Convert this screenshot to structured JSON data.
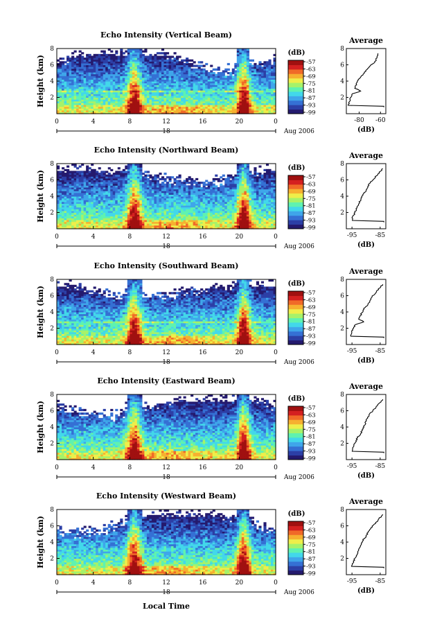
{
  "figure": {
    "ylabel": "Height (km)",
    "xlabel": "Local Time",
    "date_label": "Aug 2006",
    "colorbar_unit": "(dB)",
    "average_title": "Average",
    "average_xlabel": "(dB)"
  },
  "colorscale": {
    "colors": [
      "#241a6e",
      "#2c3fa6",
      "#3570d4",
      "#3fa6ea",
      "#42d8ea",
      "#5ff2b0",
      "#a6f26a",
      "#eeee4a",
      "#f6b030",
      "#f06a28",
      "#d42020",
      "#a01010"
    ],
    "ticks": [
      "-57",
      "-63",
      "-69",
      "-75",
      "-81",
      "-87",
      "-93",
      "-99"
    ]
  },
  "chart_data": [
    {
      "type": "heatmap",
      "title": "Echo Intensity (Vertical Beam)",
      "x_ticks": [
        "0",
        "4",
        "8",
        "12",
        "16",
        "20",
        "0"
      ],
      "x_day_label": "18",
      "y_ticks": [
        "8",
        "6",
        "4",
        "2"
      ],
      "xlim": [
        0,
        24
      ],
      "ylim": [
        0,
        8
      ],
      "average": {
        "x_ticks": [
          "-80",
          "-60"
        ],
        "xlim": [
          -92,
          -55
        ],
        "profile_db": [
          -62,
          -63,
          -64,
          -66,
          -70,
          -73,
          -75,
          -77,
          -80,
          -82,
          -83,
          -85,
          -86,
          -87,
          -88,
          -89,
          -90,
          -90
        ],
        "bump_km": 2.8
      },
      "has_band": true
    },
    {
      "type": "heatmap",
      "title": "Echo Intensity (Northward Beam)",
      "x_ticks": [
        "0",
        "4",
        "8",
        "12",
        "16",
        "20",
        "0"
      ],
      "x_day_label": "18",
      "y_ticks": [
        "8",
        "6",
        "4",
        "2"
      ],
      "xlim": [
        0,
        24
      ],
      "ylim": [
        0,
        8
      ],
      "average": {
        "x_ticks": [
          "-95",
          "-85"
        ],
        "xlim": [
          -97,
          -83
        ],
        "profile_db": [
          -84,
          -85,
          -86,
          -87,
          -88,
          -89,
          -89.5,
          -90,
          -91,
          -91.5,
          -92,
          -92.5,
          -93,
          -93.5,
          -94,
          -94.5,
          -95,
          -95
        ],
        "bump_km": null
      },
      "has_band": false
    },
    {
      "type": "heatmap",
      "title": "Echo Intensity (Southward Beam)",
      "x_ticks": [
        "0",
        "4",
        "8",
        "12",
        "16",
        "20",
        "0"
      ],
      "x_day_label": "18",
      "y_ticks": [
        "8",
        "6",
        "4",
        "2"
      ],
      "xlim": [
        0,
        24
      ],
      "ylim": [
        0,
        8
      ],
      "average": {
        "x_ticks": [
          "-95",
          "-85"
        ],
        "xlim": [
          -97,
          -83
        ],
        "profile_db": [
          -84,
          -85,
          -86,
          -87,
          -88,
          -88.5,
          -89,
          -90,
          -91,
          -91.5,
          -92,
          -93,
          -93.5,
          -94,
          -94.5,
          -95,
          -95.5,
          -95
        ],
        "bump_km": 2.8
      },
      "has_band": true
    },
    {
      "type": "heatmap",
      "title": "Echo Intensity (Eastward Beam)",
      "x_ticks": [
        "0",
        "4",
        "8",
        "12",
        "16",
        "20",
        "0"
      ],
      "x_day_label": "18",
      "y_ticks": [
        "8",
        "6",
        "4",
        "2"
      ],
      "xlim": [
        0,
        24
      ],
      "ylim": [
        0,
        8
      ],
      "average": {
        "x_ticks": [
          "-95",
          "-85"
        ],
        "xlim": [
          -97,
          -83
        ],
        "profile_db": [
          -84,
          -85,
          -86,
          -87,
          -88,
          -89,
          -89.5,
          -90,
          -90.5,
          -91,
          -91.5,
          -92,
          -93,
          -93.5,
          -94,
          -94.5,
          -95,
          -95
        ],
        "bump_km": null
      },
      "has_band": false
    },
    {
      "type": "heatmap",
      "title": "Echo Intensity (Westward Beam)",
      "x_ticks": [
        "0",
        "4",
        "8",
        "12",
        "16",
        "20",
        "0"
      ],
      "x_day_label": "18",
      "y_ticks": [
        "8",
        "6",
        "4",
        "2"
      ],
      "xlim": [
        0,
        24
      ],
      "ylim": [
        0,
        8
      ],
      "average": {
        "x_ticks": [
          "-95",
          "-85"
        ],
        "xlim": [
          -97,
          -83
        ],
        "profile_db": [
          -84,
          -85,
          -86,
          -87,
          -88,
          -89,
          -89.5,
          -90,
          -91,
          -91.5,
          -92,
          -92.5,
          -93,
          -93.5,
          -94,
          -94.5,
          -95,
          -95
        ],
        "bump_km": null
      },
      "has_band": false
    }
  ]
}
